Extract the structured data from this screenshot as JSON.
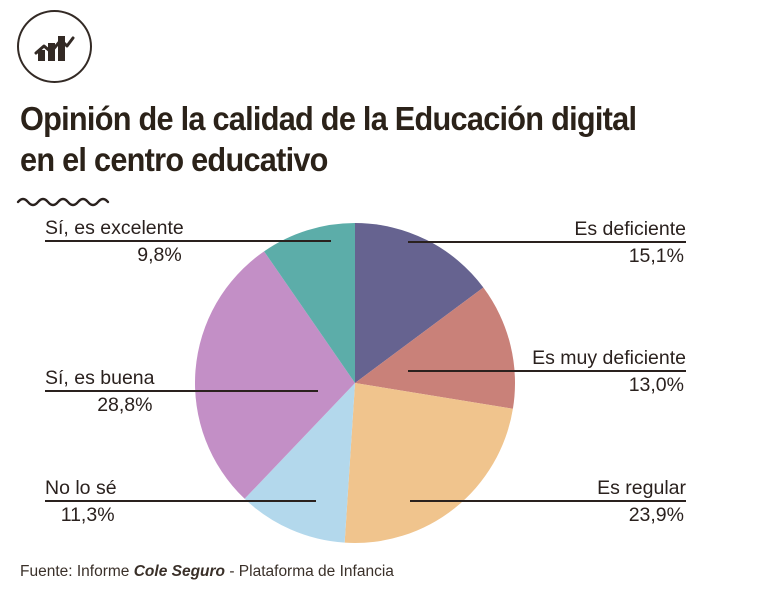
{
  "header": {
    "title_lines": [
      "Opinión de la calidad de la Educación digital",
      "en el centro educativo"
    ],
    "logo_icon": "bar-chart-trend-icon"
  },
  "footer": {
    "prefix": "Fuente: Informe ",
    "emphasis": "Cole Seguro",
    "suffix": " - Plataforma de Infancia"
  },
  "colors": {
    "ink": "#2a211e",
    "background": "#ffffff"
  },
  "chart_data": {
    "type": "pie",
    "title": "Opinión de la calidad de la Educación digital en el centro educativo",
    "start_angle": "12 o'clock",
    "direction": "clockwise",
    "slices": [
      {
        "label": "Es deficiente",
        "value": 15.1,
        "display": "15,1%",
        "color": "#666390"
      },
      {
        "label": "Es muy deficiente",
        "value": 13.0,
        "display": "13,0%",
        "color": "#c98179"
      },
      {
        "label": "Es regular",
        "value": 23.9,
        "display": "23,9%",
        "color": "#f0c48d"
      },
      {
        "label": "No lo sé",
        "value": 11.3,
        "display": "11,3%",
        "color": "#b3d8ec"
      },
      {
        "label": "Sí, es buena",
        "value": 28.8,
        "display": "28,8%",
        "color": "#c38fc6"
      },
      {
        "label": "Sí, es excelente",
        "value": 9.8,
        "display": "9,8%",
        "color": "#5cada9"
      }
    ]
  }
}
